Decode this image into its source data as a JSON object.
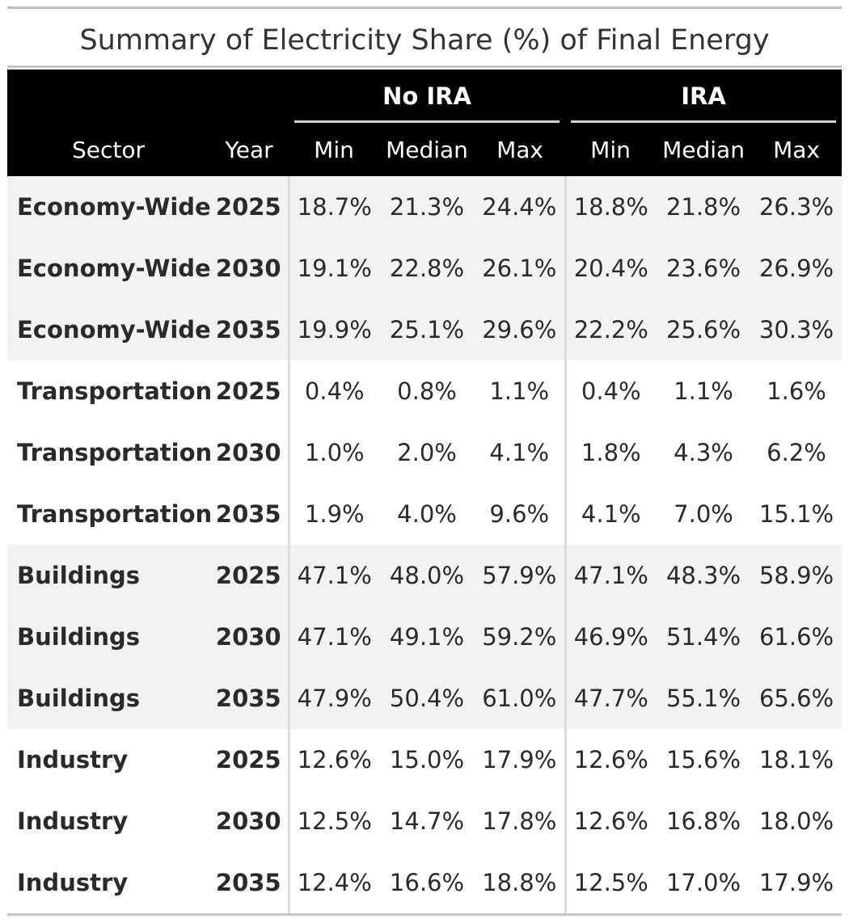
{
  "title": "Summary of Electricity Share (%) of Final Energy",
  "spanners": [
    "No IRA",
    "IRA"
  ],
  "columns": [
    "Sector",
    "Year",
    "Min",
    "Median",
    "Max",
    "Min",
    "Median",
    "Max"
  ],
  "rows": [
    {
      "sector": "Economy-Wide",
      "year": "2025",
      "no_ira": [
        "18.7%",
        "21.3%",
        "24.4%"
      ],
      "ira": [
        "18.8%",
        "21.8%",
        "26.3%"
      ]
    },
    {
      "sector": "Economy-Wide",
      "year": "2030",
      "no_ira": [
        "19.1%",
        "22.8%",
        "26.1%"
      ],
      "ira": [
        "20.4%",
        "23.6%",
        "26.9%"
      ]
    },
    {
      "sector": "Economy-Wide",
      "year": "2035",
      "no_ira": [
        "19.9%",
        "25.1%",
        "29.6%"
      ],
      "ira": [
        "22.2%",
        "25.6%",
        "30.3%"
      ]
    },
    {
      "sector": "Transportation",
      "year": "2025",
      "no_ira": [
        "0.4%",
        "0.8%",
        "1.1%"
      ],
      "ira": [
        "0.4%",
        "1.1%",
        "1.6%"
      ]
    },
    {
      "sector": "Transportation",
      "year": "2030",
      "no_ira": [
        "1.0%",
        "2.0%",
        "4.1%"
      ],
      "ira": [
        "1.8%",
        "4.3%",
        "6.2%"
      ]
    },
    {
      "sector": "Transportation",
      "year": "2035",
      "no_ira": [
        "1.9%",
        "4.0%",
        "9.6%"
      ],
      "ira": [
        "4.1%",
        "7.0%",
        "15.1%"
      ]
    },
    {
      "sector": "Buildings",
      "year": "2025",
      "no_ira": [
        "47.1%",
        "48.0%",
        "57.9%"
      ],
      "ira": [
        "47.1%",
        "48.3%",
        "58.9%"
      ]
    },
    {
      "sector": "Buildings",
      "year": "2030",
      "no_ira": [
        "47.1%",
        "49.1%",
        "59.2%"
      ],
      "ira": [
        "46.9%",
        "51.4%",
        "61.6%"
      ]
    },
    {
      "sector": "Buildings",
      "year": "2035",
      "no_ira": [
        "47.9%",
        "50.4%",
        "61.0%"
      ],
      "ira": [
        "47.7%",
        "55.1%",
        "65.6%"
      ]
    },
    {
      "sector": "Industry",
      "year": "2025",
      "no_ira": [
        "12.6%",
        "15.0%",
        "17.9%"
      ],
      "ira": [
        "12.6%",
        "15.6%",
        "18.1%"
      ]
    },
    {
      "sector": "Industry",
      "year": "2030",
      "no_ira": [
        "12.5%",
        "14.7%",
        "17.8%"
      ],
      "ira": [
        "12.6%",
        "16.8%",
        "18.0%"
      ]
    },
    {
      "sector": "Industry",
      "year": "2035",
      "no_ira": [
        "12.4%",
        "16.6%",
        "18.8%"
      ],
      "ira": [
        "12.5%",
        "17.0%",
        "17.9%"
      ]
    }
  ],
  "colors": {
    "header_bg": "#000000",
    "header_text": "#ffffff",
    "shade_bg": "#f2f2f2",
    "rule": "#c6c6c6"
  }
}
